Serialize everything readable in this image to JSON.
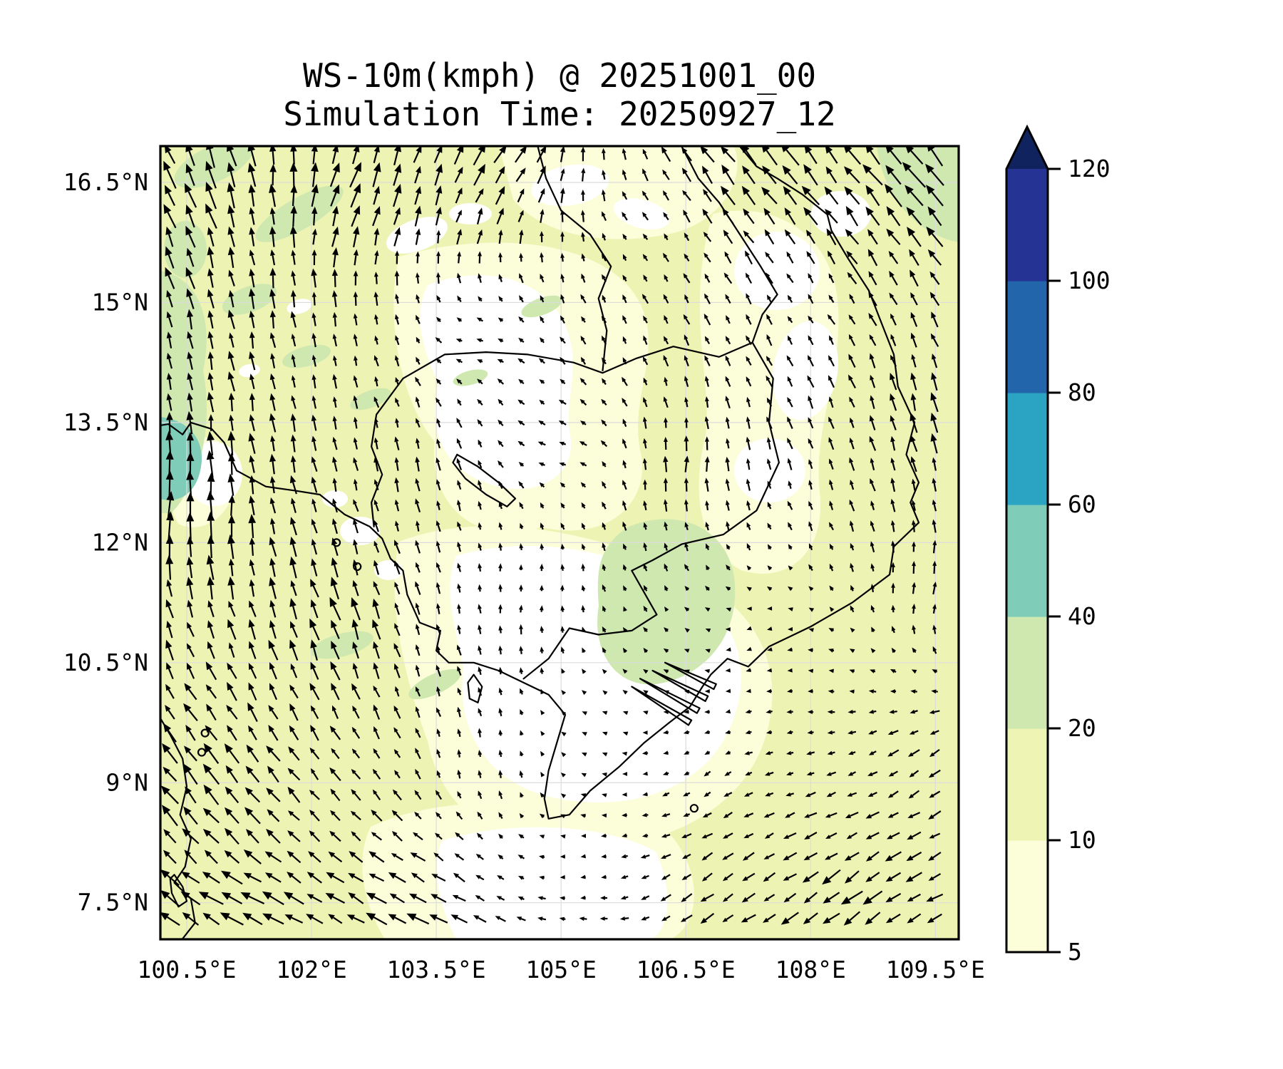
{
  "title": {
    "line1": "WS-10m(kmph) @ 20251001_00",
    "line2": "Simulation Time: 20250927_12"
  },
  "axes": {
    "x_tick_labels": [
      "100.5°E",
      "102°E",
      "103.5°E",
      "105°E",
      "106.5°E",
      "108°E",
      "109.5°E"
    ],
    "x_tick_lons": [
      100.5,
      102,
      103.5,
      105,
      106.5,
      108,
      109.5
    ],
    "y_tick_labels": [
      "16.5°N",
      "15°N",
      "13.5°N",
      "12°N",
      "10.5°N",
      "9°N",
      "7.5°N"
    ],
    "y_tick_lats": [
      16.5,
      15,
      13.5,
      12,
      10.5,
      9,
      7.5
    ]
  },
  "colorbar": {
    "tick_labels": [
      "5",
      "10",
      "20",
      "40",
      "60",
      "80",
      "100",
      "120"
    ],
    "levels": [
      5,
      10,
      20,
      40,
      60,
      80,
      100,
      120
    ],
    "segment_colors": [
      "#fcfdd9",
      "#eef4b3",
      "#cfe8b0",
      "#7fccb8",
      "#2ba3c3",
      "#2365ab",
      "#253494"
    ],
    "extend_color": "#11235e"
  },
  "chart_data": {
    "type": "heatmap",
    "subtype": "filled-contour wind speed map with quiver arrows",
    "title": "WS-10m(kmph) @ 20251001_00",
    "subtitle": "Simulation Time: 20250927_12",
    "variable": "WS-10m",
    "units": "kmph",
    "valid_time": "20251001_00",
    "simulation_time": "20250927_12",
    "xlabel_ticks_deg_east": [
      100.5,
      102,
      103.5,
      105,
      106.5,
      108,
      109.5
    ],
    "ylabel_ticks_deg_north": [
      16.5,
      15,
      13.5,
      12,
      10.5,
      9,
      7.5
    ],
    "lon_range": [
      100.2,
      109.8
    ],
    "lat_range": [
      7.05,
      16.95
    ],
    "contour_levels": [
      5,
      10,
      20,
      40,
      60,
      80,
      100,
      120
    ],
    "colorbar_extend": "max",
    "colormap": "YlGnBu",
    "colors": [
      "#fcfdd9",
      "#eef4b3",
      "#cfe8b0",
      "#7fccb8",
      "#2ba3c3",
      "#2365ab",
      "#253494",
      "#11235e"
    ],
    "grid": true,
    "legend_position": "right-colorbar",
    "wind_samples": [
      {
        "lon": 100.5,
        "lat": 16.5,
        "u": -6,
        "v": 13
      },
      {
        "lon": 100.5,
        "lat": 12.5,
        "u": 1,
        "v": 15
      },
      {
        "lon": 100.6,
        "lat": 9.0,
        "u": -8,
        "v": 10
      },
      {
        "lon": 101.2,
        "lat": 7.3,
        "u": -12,
        "v": 6
      },
      {
        "lon": 103.1,
        "lat": 7.3,
        "u": -11,
        "v": 5
      },
      {
        "lon": 102.3,
        "lat": 11.0,
        "u": -4,
        "v": 12
      },
      {
        "lon": 102.6,
        "lat": 16.5,
        "u": 5,
        "v": 12
      },
      {
        "lon": 104.2,
        "lat": 16.7,
        "u": 8,
        "v": 10
      },
      {
        "lon": 104.0,
        "lat": 14.5,
        "u": -4,
        "v": -1
      },
      {
        "lon": 105.0,
        "lat": 13.2,
        "u": -5,
        "v": -1
      },
      {
        "lon": 104.6,
        "lat": 11.5,
        "u": 2,
        "v": 2
      },
      {
        "lon": 105.2,
        "lat": 9.8,
        "u": -1,
        "v": -1
      },
      {
        "lon": 106.0,
        "lat": 15.8,
        "u": -2,
        "v": 2
      },
      {
        "lon": 107.4,
        "lat": 16.7,
        "u": -10,
        "v": 12
      },
      {
        "lon": 109.5,
        "lat": 16.7,
        "u": -12,
        "v": 14
      },
      {
        "lon": 107.9,
        "lat": 15.0,
        "u": -2,
        "v": 3
      },
      {
        "lon": 109.5,
        "lat": 13.5,
        "u": -2,
        "v": 10
      },
      {
        "lon": 106.4,
        "lat": 13.0,
        "u": 1.5,
        "v": 9
      },
      {
        "lon": 109.5,
        "lat": 11.5,
        "u": 2,
        "v": 7
      },
      {
        "lon": 107.4,
        "lat": 10.8,
        "u": -2,
        "v": -2
      },
      {
        "lon": 106.7,
        "lat": 9.0,
        "u": -3,
        "v": -3
      },
      {
        "lon": 109.5,
        "lat": 9.2,
        "u": -6,
        "v": -5
      },
      {
        "lon": 108.4,
        "lat": 7.4,
        "u": -11,
        "v": -9
      },
      {
        "lon": 106.8,
        "lat": 7.6,
        "u": -7,
        "v": -5.5
      },
      {
        "lon": 105.2,
        "lat": 8.1,
        "u": -2,
        "v": -1
      },
      {
        "lon": 104.2,
        "lat": 9.2,
        "u": 1,
        "v": 5
      },
      {
        "lon": 103.4,
        "lat": 13.0,
        "u": -1,
        "v": 7
      },
      {
        "lon": 104.5,
        "lat": 10.8,
        "u": 0,
        "v": 6
      }
    ]
  }
}
